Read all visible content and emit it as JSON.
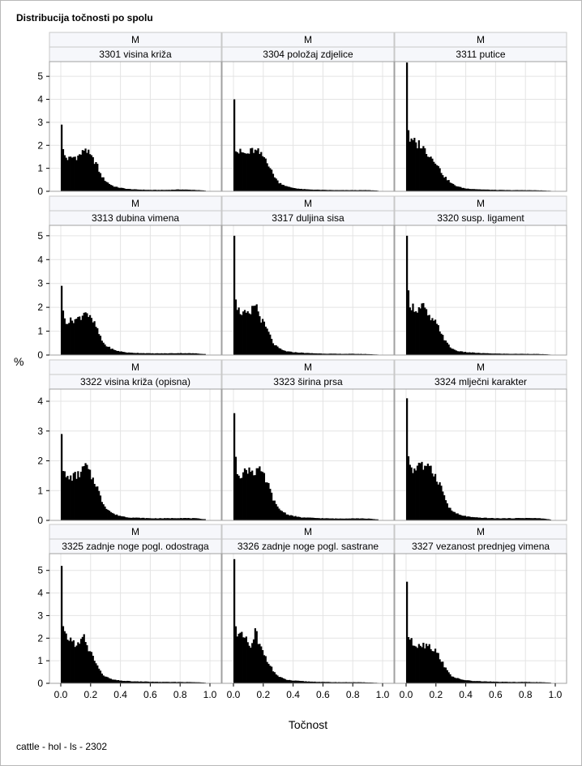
{
  "title": "Distribucija točnosti po spolu",
  "footnote": "cattle - hol - ls - 2302",
  "colors": {
    "bar": "#000000",
    "grid": "#e4e4e4",
    "strip_bg": "#f6f7fb",
    "strip_border": "#c8c8c8",
    "panel_border": "#a0a0a0"
  },
  "chart_data": {
    "type": "bar",
    "layout": "4x3 panel histogram",
    "xlabel": "Točnost",
    "ylabel": "%",
    "x_ticks": [
      "0.0",
      "0.2",
      "0.4",
      "0.6",
      "0.8",
      "1.0"
    ],
    "xlim": [
      0,
      1
    ],
    "grid": true,
    "rows": [
      {
        "ylim": [
          0,
          5.5
        ],
        "y_ticks": [
          "0",
          "1",
          "2",
          "3",
          "4",
          "5"
        ]
      },
      {
        "ylim": [
          0,
          5.3
        ],
        "y_ticks": [
          "0",
          "1",
          "2",
          "3",
          "4",
          "5"
        ]
      },
      {
        "ylim": [
          0,
          4.3
        ],
        "y_ticks": [
          "0",
          "1",
          "2",
          "3",
          "4"
        ]
      },
      {
        "ylim": [
          0,
          5.6
        ],
        "y_ticks": [
          "0",
          "1",
          "2",
          "3",
          "4",
          "5"
        ]
      }
    ],
    "panels": [
      {
        "sex": "M",
        "trait": "3301 visina križa",
        "x": [
          0.0,
          0.005,
          0.01,
          0.02,
          0.03,
          0.05,
          0.07,
          0.09,
          0.11,
          0.13,
          0.15,
          0.16,
          0.18,
          0.2,
          0.22,
          0.24,
          0.26,
          0.28,
          0.3,
          0.33,
          0.36,
          0.4,
          0.45,
          0.5,
          0.55,
          0.6,
          0.7,
          0.8,
          0.9,
          0.97
        ],
        "y": [
          1.1,
          2.9,
          1.9,
          1.6,
          1.5,
          1.4,
          1.45,
          1.5,
          1.5,
          1.6,
          1.7,
          1.95,
          1.7,
          1.5,
          1.35,
          1.2,
          0.8,
          0.6,
          0.45,
          0.3,
          0.2,
          0.15,
          0.1,
          0.08,
          0.07,
          0.06,
          0.06,
          0.08,
          0.06,
          0.03
        ]
      },
      {
        "sex": "M",
        "trait": "3304 položaj zdjelice",
        "x": [
          0.0,
          0.005,
          0.01,
          0.02,
          0.03,
          0.05,
          0.07,
          0.09,
          0.11,
          0.13,
          0.15,
          0.16,
          0.18,
          0.2,
          0.22,
          0.24,
          0.26,
          0.28,
          0.3,
          0.33,
          0.36,
          0.4,
          0.45,
          0.5,
          0.55,
          0.6,
          0.7,
          0.8,
          0.9,
          0.97
        ],
        "y": [
          1.7,
          4.0,
          2.0,
          1.8,
          1.7,
          1.7,
          1.65,
          1.6,
          1.7,
          1.8,
          1.7,
          1.75,
          1.6,
          1.5,
          1.4,
          1.1,
          0.8,
          0.6,
          0.4,
          0.3,
          0.2,
          0.15,
          0.1,
          0.08,
          0.07,
          0.06,
          0.05,
          0.05,
          0.05,
          0.03
        ]
      },
      {
        "sex": "M",
        "trait": "3311 putice",
        "x": [
          0.0,
          0.005,
          0.01,
          0.02,
          0.03,
          0.05,
          0.07,
          0.09,
          0.11,
          0.13,
          0.15,
          0.16,
          0.18,
          0.2,
          0.22,
          0.24,
          0.26,
          0.28,
          0.3,
          0.33,
          0.36,
          0.4,
          0.45,
          0.5,
          0.55,
          0.6,
          0.7,
          0.8,
          0.9,
          0.97
        ],
        "y": [
          1.8,
          5.6,
          3.0,
          2.4,
          2.1,
          2.2,
          2.0,
          2.1,
          1.9,
          1.8,
          1.6,
          1.55,
          1.4,
          1.3,
          1.0,
          0.8,
          0.6,
          0.5,
          0.35,
          0.25,
          0.18,
          0.12,
          0.1,
          0.08,
          0.07,
          0.06,
          0.05,
          0.05,
          0.04,
          0.02
        ]
      },
      {
        "sex": "M",
        "trait": "3313 dubina vimena",
        "x": [
          0.0,
          0.005,
          0.01,
          0.02,
          0.03,
          0.05,
          0.07,
          0.09,
          0.11,
          0.13,
          0.15,
          0.16,
          0.18,
          0.2,
          0.22,
          0.24,
          0.26,
          0.28,
          0.3,
          0.33,
          0.36,
          0.4,
          0.45,
          0.5,
          0.55,
          0.6,
          0.7,
          0.8,
          0.9,
          0.97
        ],
        "y": [
          1.1,
          2.9,
          1.9,
          1.6,
          1.45,
          1.4,
          1.45,
          1.5,
          1.5,
          1.6,
          1.7,
          1.95,
          1.7,
          1.5,
          1.35,
          1.15,
          0.8,
          0.55,
          0.4,
          0.3,
          0.2,
          0.15,
          0.1,
          0.09,
          0.08,
          0.07,
          0.07,
          0.08,
          0.07,
          0.04
        ]
      },
      {
        "sex": "M",
        "trait": "3317 duljina sisa",
        "x": [
          0.0,
          0.005,
          0.01,
          0.02,
          0.03,
          0.05,
          0.07,
          0.09,
          0.11,
          0.13,
          0.15,
          0.16,
          0.18,
          0.2,
          0.22,
          0.24,
          0.26,
          0.28,
          0.3,
          0.33,
          0.36,
          0.4,
          0.45,
          0.5,
          0.55,
          0.6,
          0.7,
          0.8,
          0.9,
          0.97
        ],
        "y": [
          1.6,
          5.0,
          2.8,
          2.2,
          1.9,
          1.8,
          1.75,
          1.7,
          1.6,
          2.0,
          2.2,
          1.9,
          1.55,
          1.35,
          1.1,
          0.9,
          0.55,
          0.4,
          0.3,
          0.2,
          0.15,
          0.12,
          0.1,
          0.08,
          0.07,
          0.06,
          0.05,
          0.05,
          0.04,
          0.02
        ]
      },
      {
        "sex": "M",
        "trait": "3320 susp. ligament",
        "x": [
          0.0,
          0.005,
          0.01,
          0.02,
          0.03,
          0.05,
          0.07,
          0.09,
          0.11,
          0.13,
          0.15,
          0.16,
          0.18,
          0.2,
          0.22,
          0.24,
          0.26,
          0.28,
          0.3,
          0.33,
          0.36,
          0.4,
          0.45,
          0.5,
          0.55,
          0.6,
          0.7,
          0.8,
          0.9,
          0.97
        ],
        "y": [
          1.6,
          5.0,
          2.8,
          2.3,
          2.1,
          2.0,
          1.9,
          1.95,
          2.1,
          1.85,
          1.6,
          1.55,
          1.4,
          1.35,
          1.1,
          0.9,
          0.6,
          0.45,
          0.3,
          0.2,
          0.15,
          0.12,
          0.1,
          0.08,
          0.07,
          0.06,
          0.05,
          0.05,
          0.04,
          0.02
        ]
      },
      {
        "sex": "M",
        "trait": "3322 visina križa (opisna)",
        "x": [
          0.0,
          0.005,
          0.01,
          0.02,
          0.03,
          0.05,
          0.07,
          0.09,
          0.11,
          0.13,
          0.15,
          0.16,
          0.18,
          0.2,
          0.22,
          0.24,
          0.26,
          0.28,
          0.3,
          0.33,
          0.36,
          0.4,
          0.45,
          0.5,
          0.55,
          0.6,
          0.7,
          0.8,
          0.9,
          0.97
        ],
        "y": [
          1.1,
          2.9,
          2.0,
          1.6,
          1.45,
          1.4,
          1.45,
          1.5,
          1.5,
          1.6,
          1.7,
          1.9,
          1.7,
          1.5,
          1.35,
          1.2,
          0.85,
          0.6,
          0.45,
          0.3,
          0.2,
          0.15,
          0.1,
          0.09,
          0.08,
          0.07,
          0.07,
          0.08,
          0.07,
          0.04
        ]
      },
      {
        "sex": "M",
        "trait": "3323 širina prsa",
        "x": [
          0.0,
          0.005,
          0.01,
          0.02,
          0.03,
          0.05,
          0.07,
          0.09,
          0.11,
          0.13,
          0.15,
          0.16,
          0.18,
          0.2,
          0.22,
          0.24,
          0.26,
          0.28,
          0.3,
          0.33,
          0.36,
          0.4,
          0.45,
          0.5,
          0.55,
          0.6,
          0.7,
          0.8,
          0.9,
          0.97
        ],
        "y": [
          1.3,
          3.6,
          2.2,
          1.7,
          1.6,
          1.55,
          1.6,
          1.7,
          1.75,
          1.65,
          1.6,
          1.8,
          1.6,
          1.5,
          1.3,
          1.1,
          0.8,
          0.55,
          0.4,
          0.3,
          0.2,
          0.15,
          0.1,
          0.09,
          0.08,
          0.07,
          0.06,
          0.07,
          0.06,
          0.03
        ]
      },
      {
        "sex": "M",
        "trait": "3324 mlječni karakter",
        "x": [
          0.0,
          0.005,
          0.01,
          0.02,
          0.03,
          0.05,
          0.07,
          0.09,
          0.11,
          0.13,
          0.15,
          0.16,
          0.18,
          0.2,
          0.22,
          0.24,
          0.26,
          0.28,
          0.3,
          0.33,
          0.36,
          0.4,
          0.45,
          0.5,
          0.55,
          0.6,
          0.7,
          0.8,
          0.9,
          0.97
        ],
        "y": [
          1.5,
          4.1,
          2.5,
          2.0,
          1.8,
          1.7,
          1.75,
          2.05,
          1.8,
          1.7,
          1.75,
          2.0,
          1.6,
          1.45,
          1.3,
          1.05,
          0.75,
          0.5,
          0.35,
          0.25,
          0.18,
          0.14,
          0.1,
          0.09,
          0.08,
          0.07,
          0.07,
          0.08,
          0.07,
          0.03
        ]
      },
      {
        "sex": "M",
        "trait": "3325 zadnje noge pogl. odostraga",
        "x": [
          0.0,
          0.005,
          0.01,
          0.02,
          0.03,
          0.05,
          0.07,
          0.09,
          0.11,
          0.13,
          0.15,
          0.16,
          0.18,
          0.2,
          0.22,
          0.24,
          0.26,
          0.28,
          0.3,
          0.33,
          0.36,
          0.4,
          0.45,
          0.5,
          0.55,
          0.6,
          0.7,
          0.8,
          0.9,
          0.97
        ],
        "y": [
          3.4,
          5.2,
          2.7,
          2.1,
          2.1,
          2.0,
          1.9,
          1.8,
          1.7,
          1.7,
          2.3,
          1.8,
          1.55,
          1.4,
          1.1,
          0.85,
          0.55,
          0.4,
          0.3,
          0.2,
          0.15,
          0.12,
          0.1,
          0.08,
          0.08,
          0.07,
          0.06,
          0.06,
          0.05,
          0.03
        ]
      },
      {
        "sex": "M",
        "trait": "3326 zadnje noge pogl. sastrane",
        "x": [
          0.0,
          0.005,
          0.01,
          0.02,
          0.03,
          0.05,
          0.07,
          0.09,
          0.11,
          0.13,
          0.15,
          0.16,
          0.18,
          0.2,
          0.22,
          0.24,
          0.26,
          0.28,
          0.3,
          0.33,
          0.36,
          0.4,
          0.45,
          0.5,
          0.55,
          0.6,
          0.7,
          0.8,
          0.9,
          0.97
        ],
        "y": [
          1.9,
          5.5,
          3.3,
          2.3,
          2.1,
          2.1,
          2.0,
          1.85,
          1.6,
          1.7,
          2.5,
          1.8,
          1.6,
          1.4,
          1.1,
          0.9,
          0.6,
          0.45,
          0.3,
          0.22,
          0.15,
          0.12,
          0.1,
          0.08,
          0.07,
          0.06,
          0.05,
          0.05,
          0.04,
          0.02
        ]
      },
      {
        "sex": "M",
        "trait": "3327 vezanost prednjeg vimena",
        "x": [
          0.0,
          0.005,
          0.01,
          0.02,
          0.03,
          0.05,
          0.07,
          0.09,
          0.11,
          0.13,
          0.15,
          0.16,
          0.18,
          0.2,
          0.22,
          0.24,
          0.26,
          0.28,
          0.3,
          0.33,
          0.36,
          0.4,
          0.45,
          0.5,
          0.55,
          0.6,
          0.7,
          0.8,
          0.9,
          0.97
        ],
        "y": [
          1.7,
          4.5,
          2.3,
          2.0,
          1.85,
          1.75,
          1.7,
          1.8,
          1.7,
          1.7,
          1.8,
          1.6,
          1.55,
          1.4,
          1.2,
          1.0,
          0.7,
          0.5,
          0.35,
          0.25,
          0.18,
          0.14,
          0.1,
          0.09,
          0.08,
          0.07,
          0.06,
          0.06,
          0.05,
          0.03
        ]
      }
    ]
  }
}
